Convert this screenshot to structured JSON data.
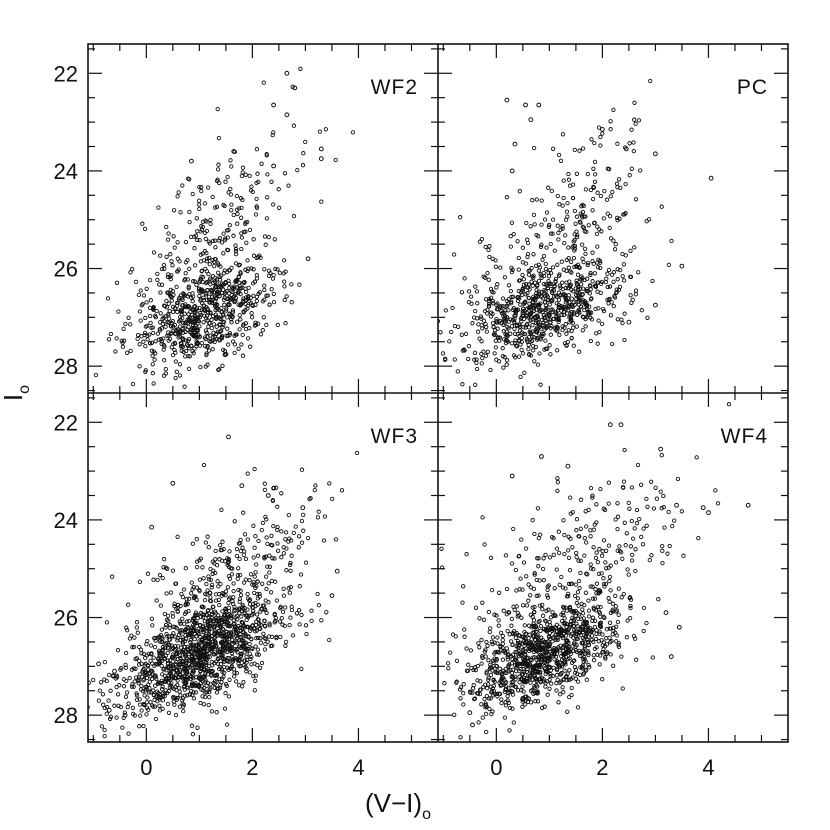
{
  "chart_data": {
    "type": "scatter",
    "xlabel": "(V−I)",
    "xlabel_sub": "o",
    "ylabel": "I",
    "ylabel_sub": "o",
    "xlim": [
      -1.1,
      5.5
    ],
    "ylim": [
      28.55,
      21.4
    ],
    "xticks": [
      "0",
      "2",
      "4"
    ],
    "yticks": [
      "22",
      "24",
      "26",
      "28"
    ],
    "grid": false,
    "panels": [
      {
        "name": "WF2",
        "n_points": 900,
        "clumps": [
          {
            "weight": 0.78,
            "cx": 1.1,
            "cy": 26.9,
            "sx": 0.7,
            "sy": 0.5,
            "slope": -0.4
          },
          {
            "weight": 0.17,
            "cx": 1.2,
            "cy": 25.2,
            "sx": 0.55,
            "sy": 0.7,
            "slope": -0.8
          },
          {
            "weight": 0.05,
            "cx": 2.4,
            "cy": 24.2,
            "sx": 0.6,
            "sy": 0.9,
            "slope": -0.8
          }
        ],
        "outliers": [
          [
            2.65,
            22.0
          ],
          [
            2.8,
            22.3
          ],
          [
            2.4,
            22.65
          ],
          [
            2.65,
            22.85
          ],
          [
            3.3,
            23.55
          ],
          [
            3.3,
            23.75
          ],
          [
            1.65,
            23.6
          ],
          [
            2.4,
            23.9
          ],
          [
            0.85,
            23.8
          ],
          [
            3.05,
            25.8
          ]
        ]
      },
      {
        "name": "PC",
        "n_points": 950,
        "clumps": [
          {
            "weight": 0.72,
            "cx": 0.9,
            "cy": 26.9,
            "sx": 0.75,
            "sy": 0.45,
            "slope": -0.35
          },
          {
            "weight": 0.2,
            "cx": 1.0,
            "cy": 25.5,
            "sx": 0.8,
            "sy": 0.75,
            "slope": -0.5
          },
          {
            "weight": 0.08,
            "cx": 1.9,
            "cy": 24.4,
            "sx": 0.4,
            "sy": 0.8,
            "slope": -0.9
          }
        ],
        "outliers": [
          [
            0.2,
            22.55
          ],
          [
            0.55,
            22.65
          ],
          [
            0.8,
            22.65
          ],
          [
            0.65,
            22.95
          ],
          [
            0.35,
            23.45
          ],
          [
            2.0,
            23.15
          ],
          [
            2.45,
            23.55
          ],
          [
            3.0,
            23.65
          ],
          [
            0.3,
            24.0
          ],
          [
            4.05,
            24.15
          ],
          [
            3.5,
            25.95
          ],
          [
            3.0,
            26.75
          ],
          [
            2.5,
            27.1
          ]
        ]
      },
      {
        "name": "WF3",
        "n_points": 1500,
        "clumps": [
          {
            "weight": 0.8,
            "cx": 1.0,
            "cy": 26.75,
            "sx": 0.8,
            "sy": 0.5,
            "slope": -0.45
          },
          {
            "weight": 0.17,
            "cx": 1.4,
            "cy": 25.3,
            "sx": 0.8,
            "sy": 0.7,
            "slope": -0.6
          },
          {
            "weight": 0.03,
            "cx": 2.6,
            "cy": 24.1,
            "sx": 0.5,
            "sy": 0.6,
            "slope": -0.6
          }
        ],
        "outliers": [
          [
            1.55,
            22.3
          ],
          [
            0.5,
            23.25
          ],
          [
            1.8,
            23.3
          ],
          [
            2.4,
            23.35
          ],
          [
            2.3,
            23.5
          ],
          [
            2.95,
            23.75
          ],
          [
            0.1,
            24.15
          ],
          [
            3.6,
            25.05
          ],
          [
            3.5,
            25.55
          ],
          [
            -0.4,
            28.0
          ],
          [
            -0.7,
            27.9
          ],
          [
            -0.9,
            26.95
          ],
          [
            0.2,
            27.6
          ],
          [
            -0.6,
            27.1
          ]
        ]
      },
      {
        "name": "WF4",
        "n_points": 1250,
        "clumps": [
          {
            "weight": 0.75,
            "cx": 0.9,
            "cy": 26.8,
            "sx": 0.7,
            "sy": 0.45,
            "slope": -0.4
          },
          {
            "weight": 0.2,
            "cx": 1.2,
            "cy": 25.3,
            "sx": 0.9,
            "sy": 0.8,
            "slope": -0.4
          },
          {
            "weight": 0.05,
            "cx": 2.2,
            "cy": 24.0,
            "sx": 0.8,
            "sy": 0.7,
            "slope": -0.4
          }
        ],
        "outliers": [
          [
            2.15,
            22.05
          ],
          [
            2.35,
            22.05
          ],
          [
            3.1,
            22.55
          ],
          [
            0.85,
            22.7
          ],
          [
            1.35,
            22.9
          ],
          [
            0.3,
            23.1
          ],
          [
            3.4,
            23.7
          ],
          [
            3.9,
            23.75
          ],
          [
            4.0,
            23.85
          ],
          [
            4.75,
            23.7
          ],
          [
            3.45,
            26.2
          ],
          [
            3.3,
            26.8
          ],
          [
            3.2,
            25.9
          ],
          [
            -0.45,
            28.2
          ],
          [
            -0.5,
            27.95
          ],
          [
            -0.2,
            27.8
          ]
        ]
      }
    ]
  }
}
